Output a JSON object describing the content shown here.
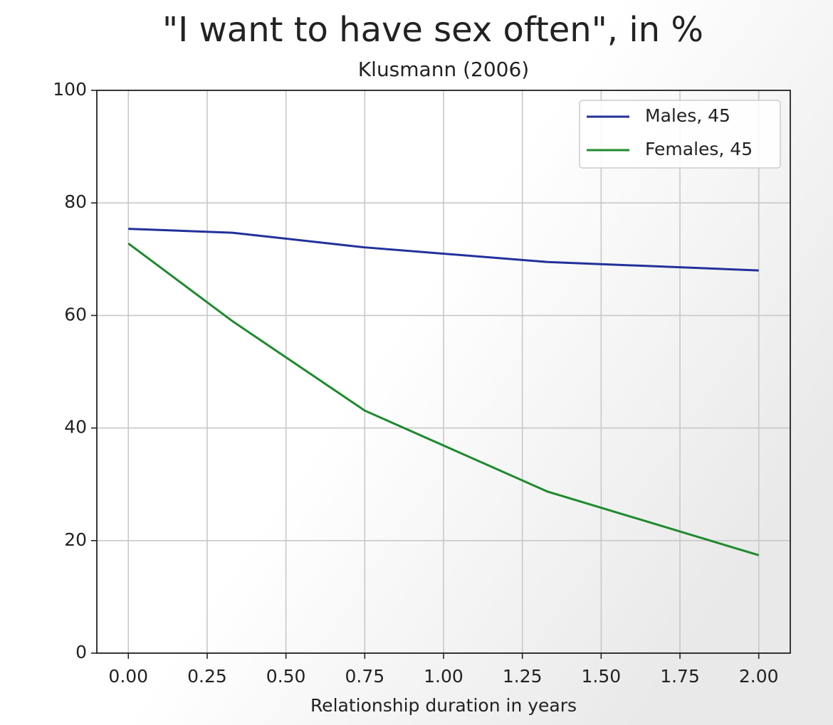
{
  "chart_data": {
    "type": "line",
    "title": "\"I want to have sex often\", in %",
    "subtitle": "Klusmann (2006)",
    "x_label": "Relationship duration in years",
    "x": [
      0,
      0.33,
      0.75,
      1.33,
      2
    ],
    "series": [
      {
        "name": "Males, 45",
        "color": "#22309a",
        "values": [
          75.4,
          74.7,
          72.1,
          69.5,
          68.0
        ]
      },
      {
        "name": "Females, 45",
        "color": "#1e8a2e",
        "values": [
          72.8,
          59.0,
          43.1,
          28.7,
          17.4
        ]
      }
    ],
    "xlim": [
      -0.1,
      2.1
    ],
    "ylim": [
      0,
      100
    ],
    "xticks": [
      {
        "value": 0,
        "label": "0.00"
      },
      {
        "value": 0.25,
        "label": "0.25"
      },
      {
        "value": 0.5,
        "label": "0.50"
      },
      {
        "value": 0.75,
        "label": "0.75"
      },
      {
        "value": 1,
        "label": "1.00"
      },
      {
        "value": 1.25,
        "label": "1.25"
      },
      {
        "value": 1.5,
        "label": "1.50"
      },
      {
        "value": 1.75,
        "label": "1.75"
      },
      {
        "value": 2,
        "label": "2.00"
      }
    ],
    "yticks": [
      0,
      20,
      40,
      60,
      80,
      100
    ],
    "grid": true,
    "legend": "upper right"
  }
}
